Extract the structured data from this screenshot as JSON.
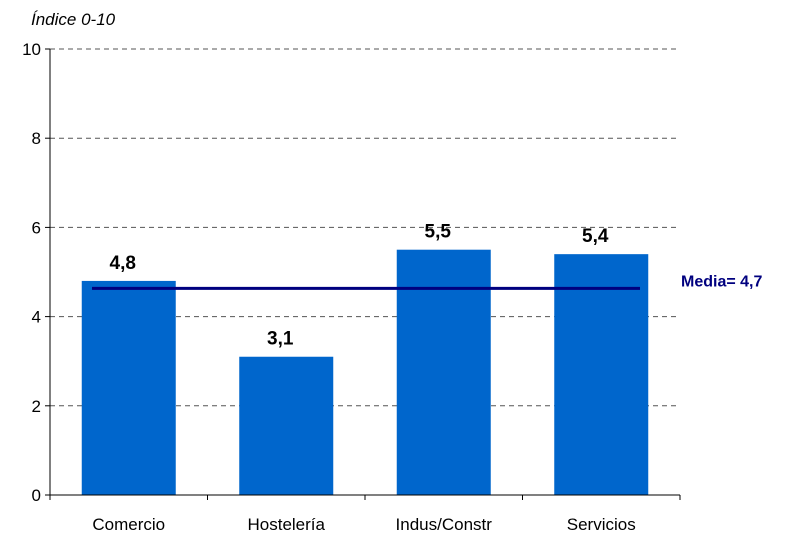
{
  "chart_data": {
    "type": "bar",
    "ylabel": "Índice 0-10",
    "ylim": [
      0,
      10
    ],
    "yticks": [
      "0",
      "2",
      "4",
      "6",
      "8",
      "10"
    ],
    "categories": [
      "Comercio",
      "Hostelería",
      "Indus/Constr",
      "Servicios"
    ],
    "values": [
      4.8,
      3.1,
      5.5,
      5.4
    ],
    "value_labels": [
      "4,8",
      "3,1",
      "5,5",
      "5,4"
    ],
    "reference_line": {
      "value": 4.7,
      "label": "Media= 4,7",
      "color": "#00007F"
    },
    "bar_color": "#0066CC",
    "grid": "dashed horizontal"
  }
}
